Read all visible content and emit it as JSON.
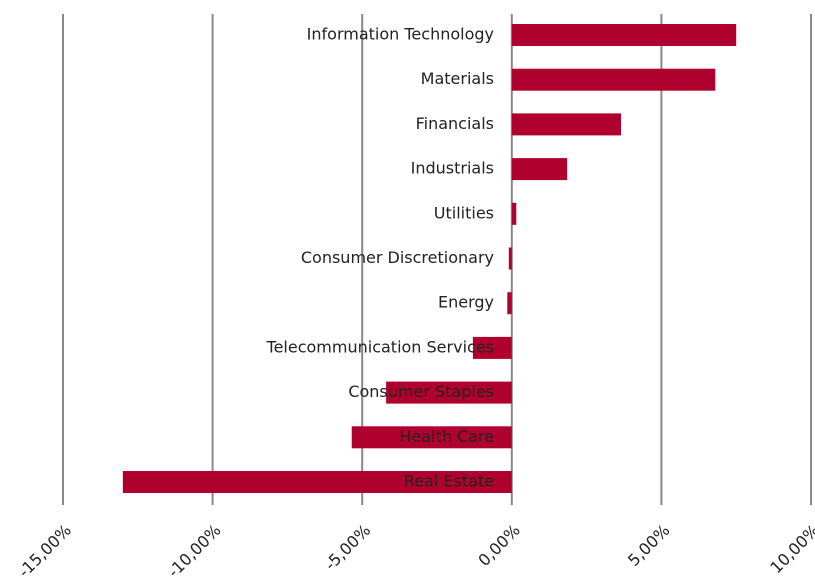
{
  "chart_data": {
    "type": "bar",
    "orientation": "horizontal",
    "categories": [
      "Information Technology",
      "Materials",
      "Financials",
      "Industrials",
      "Utilities",
      "Consumer Discretionary",
      "Energy",
      "Telecommunication Services",
      "Consumer Staples",
      "Health Care",
      "Real Estate"
    ],
    "values": [
      7.5,
      6.8,
      3.65,
      1.85,
      0.15,
      -0.1,
      -0.15,
      -1.3,
      -4.2,
      -5.35,
      -13.0
    ],
    "color": "#b0002e",
    "xlim": [
      -15,
      10
    ],
    "xticks": [
      {
        "value": -15,
        "label": "-15,00%"
      },
      {
        "value": -10,
        "label": "-10,00%"
      },
      {
        "value": -5,
        "label": "-5,00%"
      },
      {
        "value": 0,
        "label": "0,00%"
      },
      {
        "value": 5,
        "label": "5,00%"
      },
      {
        "value": 10,
        "label": "10,00%"
      }
    ],
    "grid": true
  }
}
